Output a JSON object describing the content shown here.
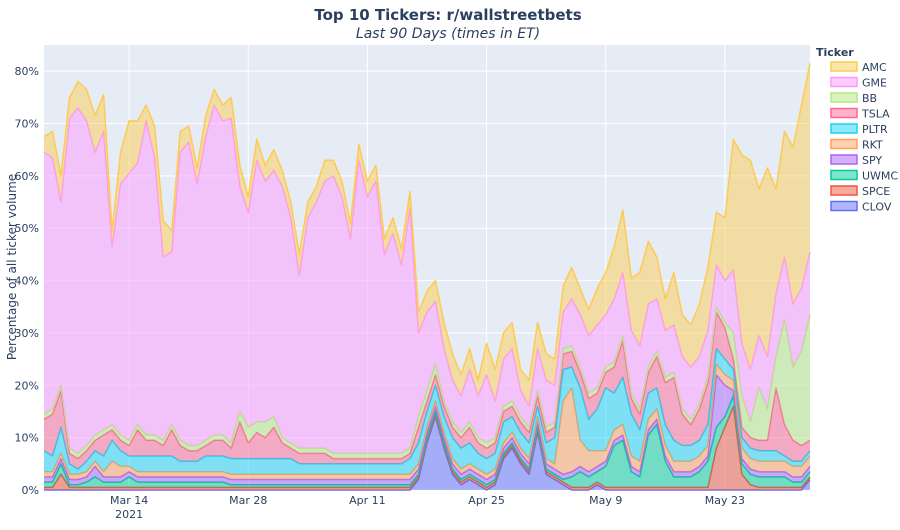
{
  "chart_data": {
    "type": "area",
    "stacked": true,
    "title": "Top 10 Tickers: r/wallstreetbets",
    "subtitle": "Last 90 Days (times in ET)",
    "ylabel": "Percentage of all ticker volume",
    "ylim": [
      0,
      85
    ],
    "yticks": [
      0,
      10,
      20,
      30,
      40,
      50,
      60,
      70,
      80
    ],
    "ytick_labels": [
      "0%",
      "10%",
      "20%",
      "30%",
      "40%",
      "50%",
      "60%",
      "70%",
      "80%"
    ],
    "xrange": [
      "2021-03-04",
      "2021-06-02"
    ],
    "xticks": [
      {
        "date": "2021-03-14",
        "label": "Mar 14",
        "sublabel": "2021"
      },
      {
        "date": "2021-03-28",
        "label": "Mar 28"
      },
      {
        "date": "2021-04-11",
        "label": "Apr 11"
      },
      {
        "date": "2021-04-25",
        "label": "Apr 25"
      },
      {
        "date": "2021-05-09",
        "label": "May 9"
      },
      {
        "date": "2021-05-23",
        "label": "May 23"
      }
    ],
    "grid": true,
    "legend_title": "Ticker",
    "legend_position": "right",
    "x_start": "2021-03-04",
    "x_step_days": 1,
    "series": [
      {
        "name": "CLOV",
        "color": "#636efa",
        "values": [
          0,
          0,
          0,
          0,
          0,
          0,
          0,
          0,
          0,
          0,
          0,
          0,
          0,
          0,
          0,
          0,
          0,
          0,
          0,
          0,
          0,
          0,
          0,
          0,
          0,
          0,
          0,
          0,
          0,
          0,
          0,
          0,
          0,
          0,
          0,
          0,
          0,
          0,
          0,
          0,
          0,
          0,
          0,
          0,
          2,
          9,
          14,
          8,
          3,
          1,
          2,
          1,
          0,
          1,
          6,
          8,
          5,
          3,
          11,
          3,
          2,
          1,
          0,
          0,
          0,
          1,
          0,
          0,
          0,
          0,
          0,
          0,
          0,
          0,
          0,
          0,
          0,
          0,
          0,
          0,
          0,
          0,
          0,
          0,
          0,
          0,
          0,
          0,
          0,
          0,
          2
        ]
      },
      {
        "name": "SPCE",
        "color": "#ef553b",
        "values": [
          0.5,
          0.5,
          3,
          0.5,
          0.5,
          0.5,
          0.5,
          0.5,
          0.5,
          0.5,
          0.5,
          0.5,
          0.5,
          0.5,
          0.5,
          0.5,
          0.5,
          0.5,
          0.5,
          0.5,
          0.5,
          0.5,
          0.5,
          0.5,
          0.5,
          0.5,
          0.5,
          0.5,
          0.5,
          0.5,
          0.5,
          0.5,
          0.5,
          0.5,
          0.5,
          0.5,
          0.5,
          0.5,
          0.5,
          0.5,
          0.5,
          0.5,
          0.5,
          0.5,
          0.5,
          0.5,
          0.5,
          0.5,
          0.5,
          0.5,
          0.5,
          0.5,
          0.5,
          0.5,
          0.5,
          0.5,
          0.5,
          0.5,
          0.5,
          0.5,
          0.5,
          0.5,
          0.5,
          0.5,
          0.5,
          0.5,
          0.5,
          0.5,
          0.5,
          0.5,
          0.5,
          0.5,
          0.5,
          0.5,
          0.5,
          0.5,
          0.5,
          0.5,
          0.5,
          8,
          12,
          16,
          3,
          1,
          0.5,
          0.5,
          0.5,
          0.5,
          0.5,
          0.5,
          0.5
        ]
      },
      {
        "name": "UWMC",
        "color": "#00cc96",
        "values": [
          1,
          1,
          2,
          0.5,
          0.5,
          1,
          2,
          1,
          1,
          1,
          2,
          1,
          1,
          1,
          1,
          1,
          1,
          1,
          1,
          1,
          1,
          1,
          0.5,
          0.5,
          0.5,
          0.5,
          0.5,
          0.5,
          0.5,
          0.5,
          0.5,
          0.5,
          0.5,
          0.5,
          0.5,
          0.5,
          0.5,
          0.5,
          0.5,
          0.5,
          0.5,
          0.5,
          0.5,
          0.5,
          0.5,
          0.5,
          0.5,
          0.5,
          0.5,
          0.5,
          0.5,
          0.5,
          0.5,
          0.5,
          0.5,
          0.5,
          0.5,
          0.5,
          0.5,
          0.5,
          0.5,
          0.5,
          2,
          3,
          2,
          2,
          4,
          8,
          9,
          3,
          2,
          10,
          12,
          5,
          2,
          2,
          2,
          3,
          5,
          4,
          2,
          2,
          2,
          2,
          2,
          2,
          2,
          2,
          1,
          1,
          1
        ]
      },
      {
        "name": "SPY",
        "color": "#ab63fa",
        "values": [
          1,
          1,
          1,
          1,
          1,
          1,
          2,
          1,
          1,
          1,
          1,
          1,
          1,
          1,
          1,
          1,
          1,
          1,
          1,
          1,
          1,
          1,
          1,
          1,
          1,
          1,
          1,
          1,
          1,
          1,
          1,
          1,
          1,
          1,
          1,
          1,
          1,
          1,
          1,
          1,
          1,
          1,
          1,
          1,
          1,
          1,
          1,
          1,
          1,
          1,
          1,
          1,
          1,
          1,
          1,
          1,
          1,
          1,
          1,
          1,
          1,
          1,
          1,
          1,
          1,
          1,
          1,
          1,
          1,
          1,
          1,
          1,
          1,
          1,
          1,
          1,
          1,
          1,
          1,
          10,
          6,
          1,
          1,
          1,
          1,
          1,
          1,
          1,
          1,
          1,
          1
        ]
      },
      {
        "name": "RKT",
        "color": "#ffa15a",
        "values": [
          1,
          1,
          1,
          1,
          1,
          1,
          1,
          1,
          3,
          2,
          1,
          1,
          1,
          1,
          1,
          1,
          1,
          1,
          1,
          1,
          1,
          1,
          1,
          1,
          1,
          1,
          1,
          1,
          1,
          1,
          1,
          1,
          1,
          1,
          1,
          1,
          1,
          1,
          1,
          1,
          1,
          1,
          1,
          1,
          1,
          1,
          1,
          1,
          1,
          1,
          1,
          1,
          1,
          1,
          1,
          1,
          1,
          1,
          1,
          1,
          1,
          14,
          16,
          5,
          4,
          3,
          2,
          2,
          2,
          2,
          2,
          2,
          2,
          2,
          2,
          2,
          2,
          2,
          2,
          2,
          2,
          2,
          2,
          2,
          2,
          2,
          2,
          2,
          2,
          2,
          2
        ]
      },
      {
        "name": "PLTR",
        "color": "#19d3f3",
        "values": [
          4,
          3,
          5,
          2,
          1,
          2,
          2,
          3,
          4,
          3,
          2,
          3,
          3,
          3,
          3,
          3,
          2,
          2,
          2,
          3,
          3,
          3,
          3,
          3,
          3,
          3,
          3,
          3,
          3,
          3,
          2,
          2,
          2,
          2,
          2,
          2,
          2,
          2,
          2,
          2,
          2,
          2,
          2,
          3,
          4,
          3,
          3,
          3,
          4,
          4,
          4,
          3,
          3,
          3,
          4,
          3,
          3,
          3,
          2,
          3,
          5,
          6,
          4,
          10,
          6,
          8,
          12,
          7,
          9,
          8,
          6,
          5,
          4,
          4,
          4,
          3,
          3,
          3,
          4,
          3,
          3,
          2,
          2,
          2,
          2,
          2,
          2,
          1,
          1,
          1,
          1
        ]
      },
      {
        "name": "TSLA",
        "color": "#ff6692",
        "values": [
          6,
          8,
          7,
          2,
          2,
          2,
          2,
          4,
          2,
          2,
          2,
          5,
          3,
          3,
          2,
          5,
          3,
          2,
          2,
          2,
          3,
          3,
          2,
          7,
          3,
          5,
          4,
          6,
          3,
          2,
          2,
          2,
          2,
          2,
          1,
          1,
          1,
          1,
          1,
          1,
          1,
          1,
          1,
          1,
          3,
          2,
          2,
          2,
          2,
          2,
          3,
          2,
          2,
          2,
          2,
          2,
          2,
          2,
          2,
          2,
          2,
          3,
          3,
          3,
          4,
          3,
          3,
          5,
          7,
          3,
          3,
          4,
          6,
          8,
          12,
          6,
          4,
          6,
          8,
          7,
          6,
          2,
          2,
          2,
          2,
          2,
          12,
          6,
          4,
          3,
          2
        ]
      },
      {
        "name": "BB",
        "color": "#b6e880",
        "values": [
          1,
          1,
          1,
          1,
          1,
          1,
          1,
          1,
          1,
          1,
          1,
          1,
          1,
          1,
          1,
          1,
          1,
          1,
          1,
          1,
          1,
          1,
          1,
          2,
          3,
          2,
          3,
          2,
          1,
          1,
          1,
          1,
          1,
          1,
          1,
          1,
          1,
          1,
          1,
          1,
          1,
          1,
          1,
          1,
          2,
          2,
          2,
          1,
          1,
          1,
          1,
          1,
          1,
          1,
          1,
          1,
          1,
          1,
          1,
          1,
          1,
          1,
          1,
          1,
          1,
          1,
          1,
          1,
          1,
          1,
          1,
          1,
          1,
          1,
          1,
          1,
          1,
          1,
          1,
          1,
          1,
          5,
          6,
          3,
          10,
          6,
          6,
          20,
          14,
          18,
          24
        ]
      },
      {
        "name": "GME",
        "color": "#ff97ff",
        "values": [
          50,
          48,
          35,
          63,
          66,
          62,
          54,
          57,
          34,
          48,
          51,
          50,
          60,
          53,
          35,
          33,
          55,
          58,
          50,
          58,
          63,
          60,
          62,
          43,
          41,
          50,
          46,
          47,
          48,
          43,
          33,
          44,
          47,
          51,
          53,
          49,
          41,
          56,
          49,
          52,
          38,
          42,
          36,
          46,
          16,
          15,
          12,
          10,
          8,
          7,
          10,
          8,
          13,
          7,
          9,
          10,
          5,
          4,
          8,
          9,
          7,
          7,
          9,
          10,
          11,
          12,
          10,
          12,
          12,
          12,
          12,
          12,
          10,
          9,
          9,
          10,
          10,
          9,
          9,
          8,
          8,
          12,
          10,
          10,
          10,
          10,
          12,
          12,
          12,
          12,
          12
        ]
      },
      {
        "name": "AMC",
        "color": "#fecb52",
        "values": [
          3,
          5,
          5,
          4,
          5,
          6,
          7,
          7,
          3,
          6,
          10,
          8,
          3,
          6,
          7,
          4,
          4,
          3,
          3,
          4,
          3,
          3,
          4,
          4,
          3,
          4,
          3,
          4,
          3,
          3,
          4,
          3,
          3,
          4,
          3,
          3,
          3,
          3,
          3,
          3,
          3,
          3,
          3,
          3,
          4,
          4,
          4,
          5,
          5,
          4,
          4,
          3,
          6,
          6,
          5,
          5,
          4,
          5,
          5,
          5,
          5,
          5,
          6,
          5,
          5,
          7,
          8,
          10,
          12,
          10,
          14,
          12,
          8,
          6,
          10,
          8,
          8,
          10,
          12,
          10,
          12,
          25,
          36,
          40,
          28,
          36,
          20,
          24,
          30,
          35,
          36
        ]
      }
    ]
  }
}
